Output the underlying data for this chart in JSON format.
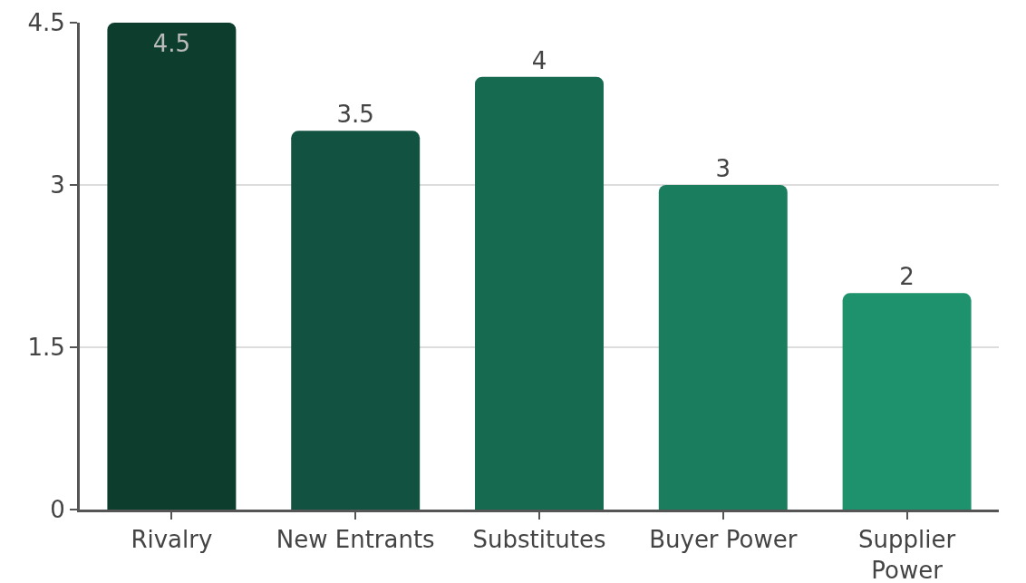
{
  "chart_data": {
    "type": "bar",
    "categories": [
      "Rivalry",
      "New Entrants",
      "Substitutes",
      "Buyer Power",
      "Supplier Power"
    ],
    "values": [
      4.5,
      3.5,
      4,
      3,
      2
    ],
    "colors": [
      "#0d3d2c",
      "#125240",
      "#166a50",
      "#1a7d5e",
      "#1e926c"
    ],
    "ylim": [
      0,
      4.5
    ],
    "yticks": [
      0,
      1.5,
      3,
      4.5
    ],
    "grid": "y",
    "data_labels": true
  }
}
